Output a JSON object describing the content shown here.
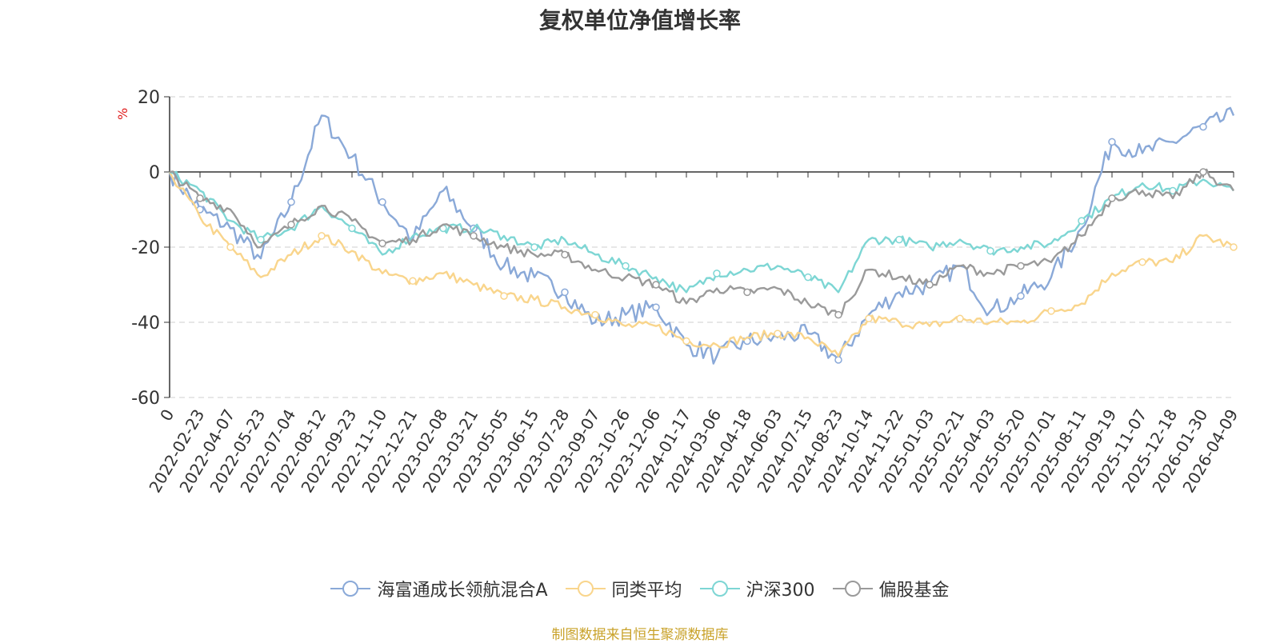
{
  "chart_data": {
    "type": "line",
    "title": "复权单位净值增长率",
    "ylabel": "%",
    "ylim": [
      -60,
      20
    ],
    "yticks": [
      20,
      0,
      -20,
      -40,
      -60
    ],
    "x_start_label": "0",
    "categories": [
      "2022-02-23",
      "2022-04-07",
      "2022-05-23",
      "2022-07-04",
      "2022-08-12",
      "2022-09-23",
      "2022-11-10",
      "2022-12-21",
      "2023-02-08",
      "2023-03-21",
      "2023-05-05",
      "2023-06-15",
      "2023-07-28",
      "2023-09-07",
      "2023-10-26",
      "2023-12-06",
      "2024-01-17",
      "2024-03-06",
      "2024-04-18",
      "2024-06-03",
      "2024-07-15",
      "2024-08-23",
      "2024-10-14",
      "2024-11-22",
      "2025-01-03",
      "2025-02-21",
      "2025-04-03",
      "2025-05-20",
      "2025-07-01",
      "2025-08-11",
      "2025-09-19",
      "2025-11-07",
      "2025-12-18",
      "2026-01-30",
      "2026-04-09"
    ],
    "series": [
      {
        "name": "海富通成长领航混合A",
        "color": "#8aa9d8",
        "values": [
          -10,
          -15,
          -23,
          -8,
          15,
          4,
          -8,
          -18,
          -5,
          -15,
          -25,
          -28,
          -32,
          -40,
          -38,
          -36,
          -46,
          -49,
          -45,
          -44,
          -43,
          -50,
          -38,
          -32,
          -30,
          -25,
          -37,
          -33,
          -28,
          -15,
          8,
          5,
          8,
          12,
          15
        ]
      },
      {
        "name": "同类平均",
        "color": "#f9d58c",
        "values": [
          -12,
          -20,
          -28,
          -22,
          -17,
          -21,
          -27,
          -29,
          -27,
          -30,
          -33,
          -34,
          -36,
          -38,
          -41,
          -41,
          -45,
          -46,
          -44,
          -43,
          -44,
          -49,
          -39,
          -40,
          -41,
          -39,
          -40,
          -40,
          -37,
          -35,
          -27,
          -24,
          -24,
          -17,
          -20
        ]
      },
      {
        "name": "沪深300",
        "color": "#7dd6d4",
        "values": [
          -5,
          -13,
          -18,
          -15,
          -9,
          -15,
          -22,
          -17,
          -15,
          -15,
          -17,
          -20,
          -18,
          -22,
          -25,
          -28,
          -32,
          -27,
          -26,
          -25,
          -28,
          -32,
          -18,
          -18,
          -20,
          -18,
          -21,
          -20,
          -19,
          -13,
          -7,
          -3,
          -5,
          -2,
          -5
        ]
      },
      {
        "name": "偏股基金",
        "color": "#9a9a9a",
        "values": [
          -7,
          -10,
          -20,
          -14,
          -9,
          -13,
          -19,
          -18,
          -14,
          -17,
          -20,
          -22,
          -22,
          -26,
          -28,
          -30,
          -35,
          -31,
          -32,
          -31,
          -35,
          -38,
          -26,
          -28,
          -30,
          -25,
          -27,
          -25,
          -24,
          -17,
          -7,
          -5,
          -7,
          0,
          -5
        ]
      }
    ]
  },
  "legend": {
    "items": [
      "海富通成长领航混合A",
      "同类平均",
      "沪深300",
      "偏股基金"
    ]
  },
  "source": "制图数据来自恒生聚源数据库"
}
